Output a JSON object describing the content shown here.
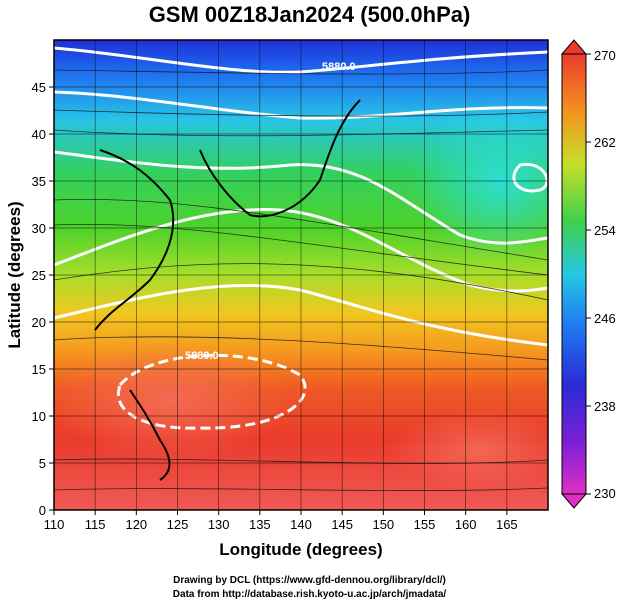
{
  "title": "GSM 00Z18Jan2024 (500.0hPa)",
  "axes": {
    "xlabel": "Longitude (degrees)",
    "ylabel": "Latitude (degrees)",
    "xticks": [
      "110",
      "115",
      "120",
      "125",
      "130",
      "135",
      "140",
      "145",
      "150",
      "155",
      "160",
      "165"
    ],
    "yticks": [
      "0",
      "5",
      "10",
      "15",
      "20",
      "25",
      "30",
      "35",
      "40",
      "45"
    ],
    "xrange": [
      110,
      170
    ],
    "yrange": [
      0,
      50
    ]
  },
  "colorbar": {
    "labels": [
      "270",
      "262",
      "254",
      "246",
      "238",
      "230"
    ],
    "range": [
      230,
      270
    ],
    "colors": [
      "#e833c8",
      "#2a1fd1",
      "#1c6cf0",
      "#27c8e8",
      "#3ecf3a",
      "#b8e02a",
      "#f3a21d",
      "#e93e2a",
      "#f15b55"
    ]
  },
  "contour_labels": [
    "5880.0",
    "5880.0"
  ],
  "credits": {
    "line1": "Drawing by DCL (https://www.gfd-dennou.org/library/dcl/)",
    "line2": "Data from http://database.rish.kyoto-u.ac.jp/arch/jmadata/"
  }
}
